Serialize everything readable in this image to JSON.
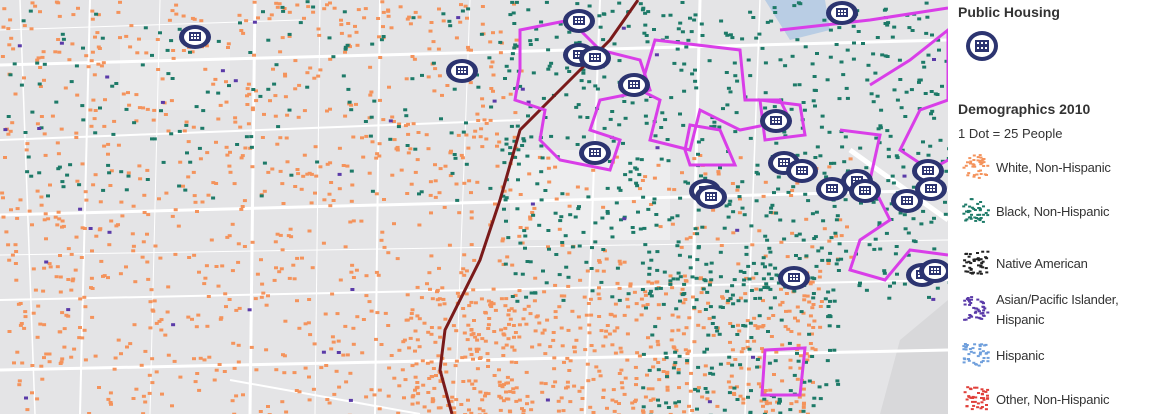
{
  "legend": {
    "public_housing_title": "Public Housing",
    "public_housing_icon": "public-housing-building-icon",
    "demographics_title": "Demographics 2010",
    "dot_scale": "1 Dot = 25 People",
    "categories": [
      {
        "label": "White, Non-Hispanic",
        "color": "#f4935c"
      },
      {
        "label": "Black, Non-Hispanic",
        "color": "#1d7a68"
      },
      {
        "label": "Native American",
        "color": "#222222"
      },
      {
        "label": "Asian/Pacific Islander,",
        "label2": "Hispanic",
        "color": "#5a3aa8"
      },
      {
        "label": "Hispanic",
        "color": "#6f9fdc"
      },
      {
        "label": "Other, Non-Hispanic",
        "color": "#e0403a"
      }
    ]
  },
  "map": {
    "colors": {
      "background": "#e4e4e6",
      "roads": "#ffffff",
      "boundary_line": "#7a1a1a",
      "district_outline": "#d93ee8",
      "housing_icon": "#2c3470",
      "water": "#b9cde4"
    }
  }
}
